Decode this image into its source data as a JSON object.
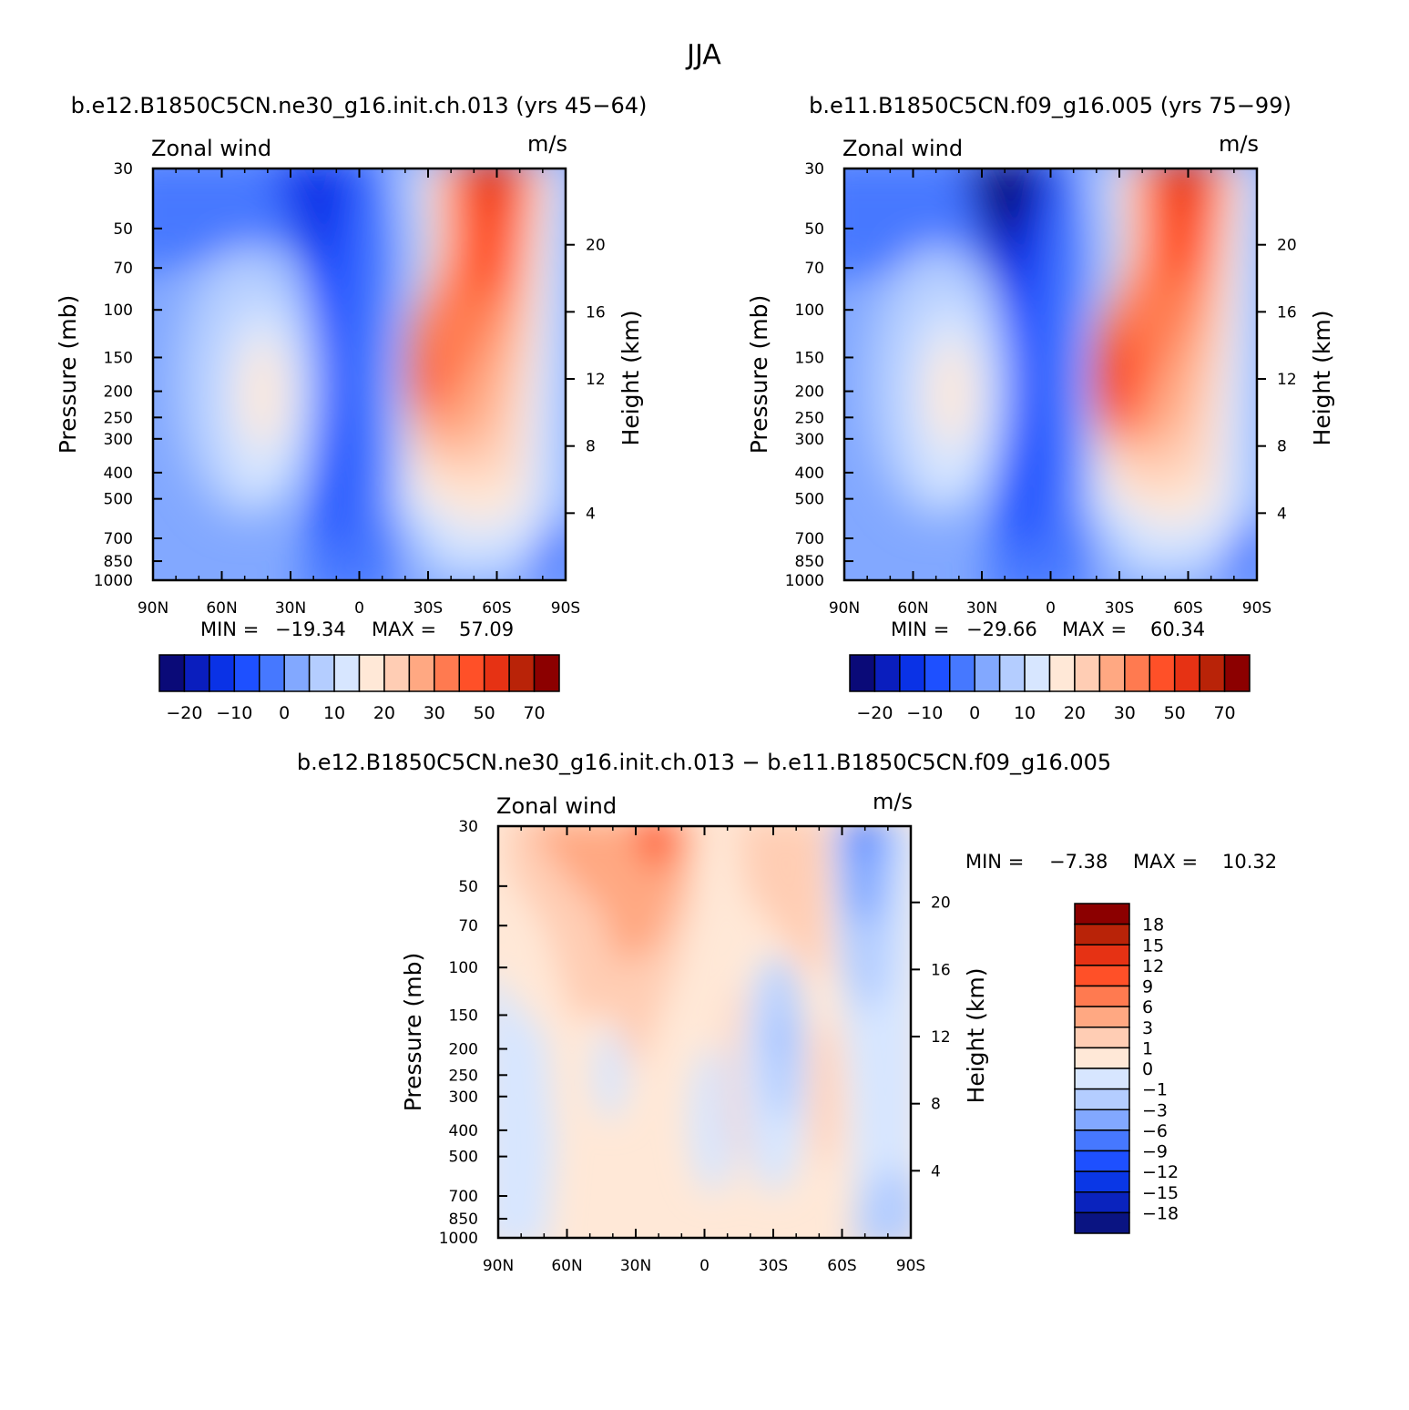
{
  "title": "JJA",
  "colors": {
    "palette": [
      "#0a0a78",
      "#0a1ebe",
      "#0a32e6",
      "#1e50ff",
      "#4678ff",
      "#82a8ff",
      "#b4cdff",
      "#d7e6ff",
      "#ffe8d7",
      "#ffcdb4",
      "#ffa882",
      "#ff7a50",
      "#ff5028",
      "#e63214",
      "#b92308",
      "#8c0000"
    ],
    "diff_palette": [
      "#0a1482",
      "#0a23be",
      "#0a37e6",
      "#1e50ff",
      "#4678ff",
      "#82a8ff",
      "#b4cdff",
      "#d7e6ff",
      "#ffe8d7",
      "#ffcdb4",
      "#ffa882",
      "#ff7a50",
      "#ff5028",
      "#e63214",
      "#b92308",
      "#8c0000"
    ]
  },
  "chart_data": [
    {
      "type": "heatmap",
      "title": "b.e12.B1850C5CN.ne30_g16.init.ch.013 (yrs 45−64)",
      "left_string": "Zonal wind",
      "right_string": "m/s",
      "ylabel": "Pressure (mb)",
      "ylabel_right": "Height (km)",
      "x_ticks": [
        "90N",
        "60N",
        "30N",
        "0",
        "30S",
        "60S",
        "90S"
      ],
      "y_ticks": [
        "30",
        "50",
        "70",
        "100",
        "150",
        "200",
        "250",
        "300",
        "400",
        "500",
        "700",
        "850",
        "1000"
      ],
      "y_ticks_right": [
        "20",
        "16",
        "12",
        "8",
        "4"
      ],
      "min_label": "MIN =",
      "min_value": "−19.34",
      "max_label": "MAX =",
      "max_value": "57.09",
      "colorbar_labels": [
        "−20",
        "−10",
        "0",
        "10",
        "20",
        "30",
        "50",
        "70"
      ],
      "jets": [
        {
          "lat": -55,
          "p": 30,
          "peak": 57
        },
        {
          "lat": -45,
          "p": 200,
          "peak": 45
        },
        {
          "lat": 20,
          "p": 30,
          "peak": -19
        }
      ]
    },
    {
      "type": "heatmap",
      "title": "b.e11.B1850C5CN.f09_g16.005 (yrs 75−99)",
      "left_string": "Zonal wind",
      "right_string": "m/s",
      "ylabel": "Pressure (mb)",
      "ylabel_right": "Height (km)",
      "x_ticks": [
        "90N",
        "60N",
        "30N",
        "0",
        "30S",
        "60S",
        "90S"
      ],
      "y_ticks": [
        "30",
        "50",
        "70",
        "100",
        "150",
        "200",
        "250",
        "300",
        "400",
        "500",
        "700",
        "850",
        "1000"
      ],
      "y_ticks_right": [
        "20",
        "16",
        "12",
        "8",
        "4"
      ],
      "min_label": "MIN =",
      "min_value": "−29.66",
      "max_label": "MAX =",
      "max_value": "60.34",
      "colorbar_labels": [
        "−20",
        "−10",
        "0",
        "10",
        "20",
        "30",
        "50",
        "70"
      ],
      "jets": [
        {
          "lat": -60,
          "p": 30,
          "peak": 60
        },
        {
          "lat": -45,
          "p": 200,
          "peak": 47
        },
        {
          "lat": 20,
          "p": 30,
          "peak": -29
        }
      ]
    },
    {
      "type": "heatmap",
      "title": "b.e12.B1850C5CN.ne30_g16.init.ch.013 − b.e11.B1850C5CN.f09_g16.005",
      "left_string": "Zonal wind",
      "right_string": "m/s",
      "ylabel": "Pressure (mb)",
      "ylabel_right": "Height (km)",
      "x_ticks": [
        "90N",
        "60N",
        "30N",
        "0",
        "30S",
        "60S",
        "90S"
      ],
      "y_ticks": [
        "30",
        "50",
        "70",
        "100",
        "150",
        "200",
        "250",
        "300",
        "400",
        "500",
        "700",
        "850",
        "1000"
      ],
      "y_ticks_right": [
        "20",
        "16",
        "12",
        "8",
        "4"
      ],
      "min_label": "MIN =",
      "min_value": "−7.38",
      "max_label": "MAX =",
      "max_value": "10.32",
      "colorbar_labels": [
        "18",
        "15",
        "12",
        "9",
        "6",
        "3",
        "1",
        "0",
        "−1",
        "−3",
        "−6",
        "−9",
        "−12",
        "−15",
        "−18"
      ]
    }
  ]
}
